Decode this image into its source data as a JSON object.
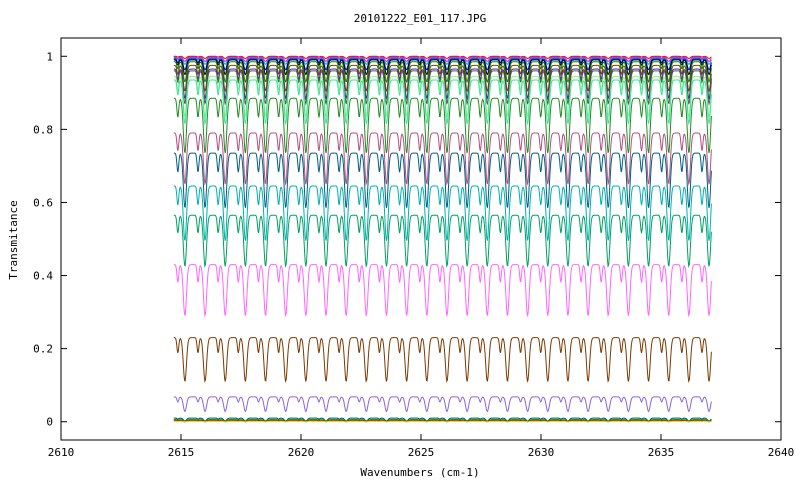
{
  "chart_data": {
    "type": "line",
    "title": "20101222_E01_117.JPG",
    "xlabel": "Wavenumbers (cm-1)",
    "ylabel": "Transmitance",
    "xlim": [
      2610,
      2640
    ],
    "ylim": [
      -0.05,
      1.05
    ],
    "x_ticks": [
      2610,
      2615,
      2620,
      2625,
      2630,
      2635,
      2640
    ],
    "y_ticks": [
      0,
      0.2,
      0.4,
      0.6,
      0.8,
      1
    ],
    "x_range": [
      2614.7,
      2637.1
    ],
    "grid": false,
    "line_period_cm": 0.84,
    "series": [
      {
        "color": "#ff0000",
        "baseline": 1.0,
        "depth": 0.006
      },
      {
        "color": "#ff00ff",
        "baseline": 0.998,
        "depth": 0.012
      },
      {
        "color": "#00aaaa",
        "baseline": 0.996,
        "depth": 0.018
      },
      {
        "color": "#0000ff",
        "baseline": 0.993,
        "depth": 0.03
      },
      {
        "color": "#000000",
        "baseline": 0.99,
        "depth": 0.04
      },
      {
        "color": "#008800",
        "baseline": 0.985,
        "depth": 0.055
      },
      {
        "color": "#804000",
        "baseline": 0.975,
        "depth": 0.07
      },
      {
        "color": "#333399",
        "baseline": 0.965,
        "depth": 0.08
      },
      {
        "color": "#555555",
        "baseline": 0.96,
        "depth": 0.09
      },
      {
        "color": "#80ff80",
        "baseline": 0.945,
        "depth": 0.11
      },
      {
        "color": "#40e0a0",
        "baseline": 0.935,
        "depth": 0.12
      },
      {
        "color": "#228B22",
        "baseline": 0.885,
        "depth": 0.15
      },
      {
        "color": "#b05080",
        "baseline": 0.79,
        "depth": 0.14
      },
      {
        "color": "#005f7f",
        "baseline": 0.735,
        "depth": 0.15
      },
      {
        "color": "#00b0b0",
        "baseline": 0.645,
        "depth": 0.15
      },
      {
        "color": "#00a060",
        "baseline": 0.565,
        "depth": 0.14
      },
      {
        "color": "#ff66ff",
        "baseline": 0.43,
        "depth": 0.14
      },
      {
        "color": "#7a3a00",
        "baseline": 0.23,
        "depth": 0.12
      },
      {
        "color": "#8866dd",
        "baseline": 0.068,
        "depth": 0.04
      },
      {
        "color": "#004080",
        "baseline": 0.01,
        "depth": 0.008
      },
      {
        "color": "#00aa00",
        "baseline": 0.006,
        "depth": 0.005
      },
      {
        "color": "#cc0000",
        "baseline": 0.003,
        "depth": 0.003
      },
      {
        "color": "#e0e000",
        "baseline": 0.001,
        "depth": 0.001
      }
    ]
  }
}
